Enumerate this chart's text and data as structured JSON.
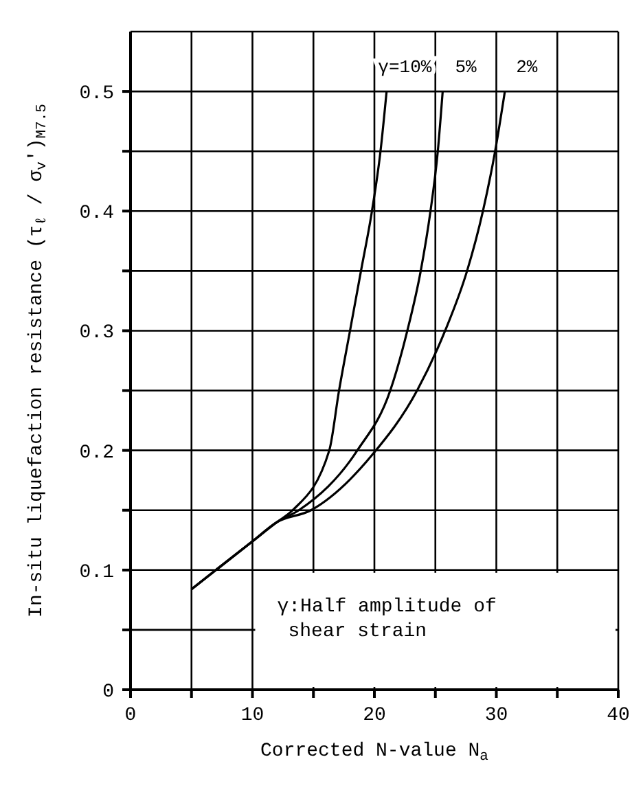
{
  "chart_data": {
    "type": "line",
    "xlabel": "Corrected N-value N$_{a}$",
    "ylabel": "In-situ liquefaction resistance (τ$_{ℓ}$ / σ$_{v}$′)$_{M7.5}$",
    "xlim": [
      0,
      40
    ],
    "xticks": [
      0,
      {
        "value": 5,
        "label": null
      },
      10,
      {
        "value": 15,
        "label": null
      },
      20,
      {
        "value": 25,
        "label": null
      },
      30,
      {
        "value": 35,
        "label": null
      },
      40
    ],
    "ylim": [
      0,
      0.55
    ],
    "yticks": [
      0,
      {
        "value": 0.05,
        "label": null
      },
      0.1,
      {
        "value": 0.15,
        "label": null
      },
      0.2,
      {
        "value": 0.25,
        "label": null
      },
      0.3,
      {
        "value": 0.35,
        "label": null
      },
      0.4,
      {
        "value": 0.45,
        "label": null
      },
      0.5
    ],
    "grid": true,
    "marker": "none",
    "line_style": "solid",
    "series": [
      {
        "name": "γ=10%",
        "color": "#000000",
        "x": [
          5,
          7,
          10,
          12,
          13.3,
          16.3,
          17.1,
          18,
          18.9,
          19.8,
          20.5,
          21
        ],
        "values": [
          0.084,
          0.1,
          0.124,
          0.14,
          0.15,
          0.2,
          0.25,
          0.3,
          0.35,
          0.4,
          0.45,
          0.5
        ]
      },
      {
        "name": "5%",
        "color": "#000000",
        "x": [
          5,
          7,
          10,
          12,
          13.8,
          18.6,
          21.3,
          22.7,
          23.8,
          24.6,
          25.2,
          25.6
        ],
        "values": [
          0.084,
          0.1,
          0.124,
          0.14,
          0.15,
          0.2,
          0.25,
          0.3,
          0.35,
          0.4,
          0.45,
          0.5
        ]
      },
      {
        "name": "2%",
        "color": "#000000",
        "x": [
          5,
          7,
          10,
          12,
          14.8,
          19.8,
          23.5,
          25.8,
          27.6,
          28.9,
          29.9,
          30.7
        ],
        "values": [
          0.084,
          0.1,
          0.124,
          0.14,
          0.15,
          0.196,
          0.25,
          0.3,
          0.35,
          0.4,
          0.45,
          0.5
        ]
      }
    ],
    "annotations": [
      "γ:Half amplitude of shear strain"
    ]
  }
}
